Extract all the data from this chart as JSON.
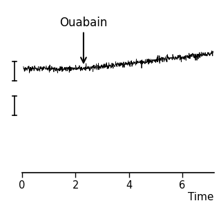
{
  "title": "",
  "xlabel": "Time",
  "ylabel": "",
  "xlim": [
    0,
    7.2
  ],
  "ylim": [
    -1.5,
    4.0
  ],
  "xticks": [
    0,
    2,
    4,
    6
  ],
  "ouabain_x": 2.3,
  "ouabain_label": "Ouabain",
  "signal_start": 0.05,
  "signal_end": 7.15,
  "signal_baseline": 2.3,
  "signal_drift": 0.55,
  "noise_amplitude": 0.045,
  "spike_count": 120,
  "spike_max": 0.12,
  "background_color": "#ffffff",
  "line_color": "#000000",
  "annotation_fontsize": 12,
  "xlabel_fontsize": 11,
  "scale_bar_y_top": 2.55,
  "scale_bar_y_bot": 1.85,
  "seed": 7
}
